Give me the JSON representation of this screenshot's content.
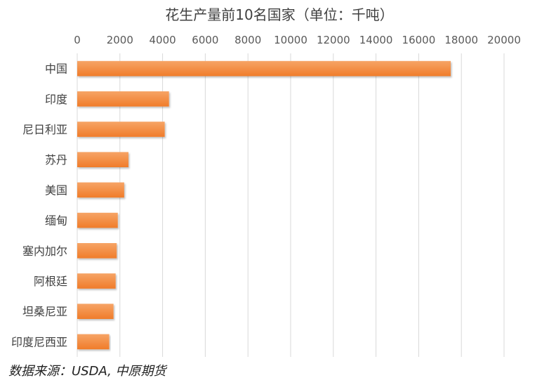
{
  "chart_data": {
    "type": "bar",
    "orientation": "horizontal",
    "title": "花生产量前10名国家（单位：千吨）",
    "categories": [
      "中国",
      "印度",
      "尼日利亚",
      "苏丹",
      "美国",
      "缅甸",
      "塞内加尔",
      "阿根廷",
      "坦桑尼亚",
      "印度尼西亚"
    ],
    "values": [
      17500,
      4300,
      4100,
      2400,
      2200,
      1900,
      1850,
      1800,
      1700,
      1500
    ],
    "xlim": [
      0,
      20000
    ],
    "xticks": [
      0,
      2000,
      4000,
      6000,
      8000,
      10000,
      12000,
      14000,
      16000,
      18000,
      20000
    ],
    "xaxis_position": "top",
    "grid": true,
    "legend": "none",
    "colors": {
      "bar": "#F07C2A",
      "bar_light": "#F6A466",
      "grid": "#D9D9D9"
    }
  },
  "source": "数据来源：USDA, 中原期货"
}
